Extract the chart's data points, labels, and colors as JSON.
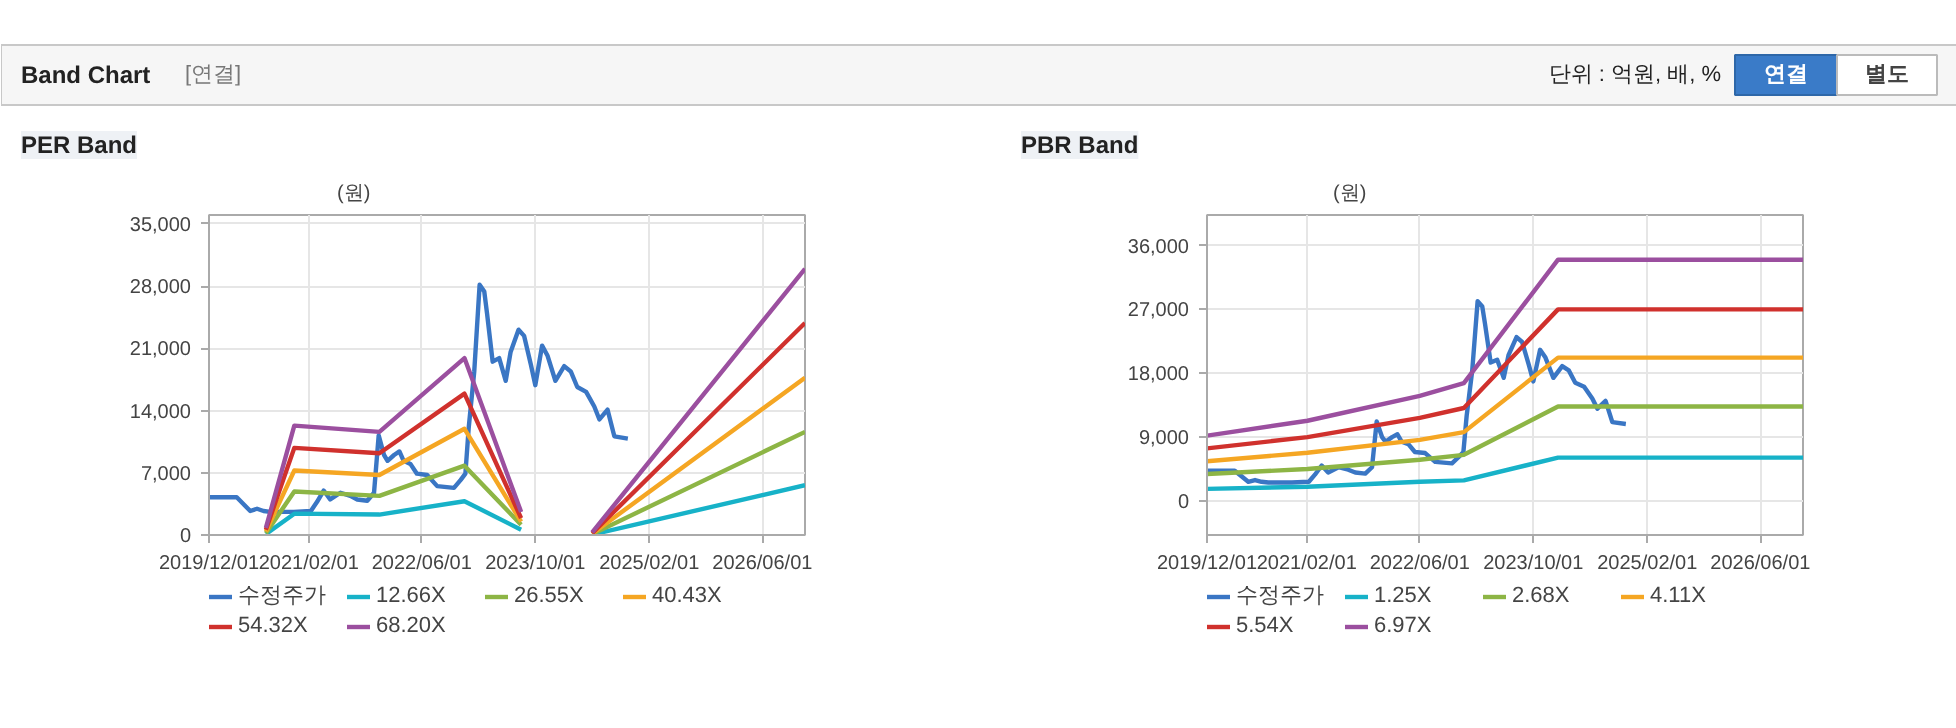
{
  "chart_data": [
    {
      "type": "other",
      "title": "Band Chart",
      "annotations": [
        "[연결]",
        "단위 : 억원, 배, %",
        "연결",
        "별도"
      ]
    },
    {
      "type": "line",
      "title": "PER Band",
      "ylabel": "(원)",
      "legend": "bottom",
      "grid": true,
      "xlim": [
        "2019-12-01",
        "2026-12-01"
      ],
      "xticks": [
        {
          "value": "2019-12-01",
          "label": "2019/12/01"
        },
        {
          "value": "2021-02-01",
          "label": "2021/02/01"
        },
        {
          "value": "2022-06-01",
          "label": "2022/06/01"
        },
        {
          "value": "2023-10-01",
          "label": "2023/10/01"
        },
        {
          "value": "2025-02-01",
          "label": "2025/02/01"
        },
        {
          "value": "2026-06-01",
          "label": "2026/06/01"
        }
      ],
      "ylim": [
        0,
        36000
      ],
      "yticks": [
        {
          "value": 0,
          "label": "0"
        },
        {
          "value": 7000,
          "label": "7,000"
        },
        {
          "value": 14000,
          "label": "14,000"
        },
        {
          "value": 21000,
          "label": "21,000"
        },
        {
          "value": 28000,
          "label": "28,000"
        },
        {
          "value": 35000,
          "label": "35,000"
        }
      ],
      "series": [
        {
          "name": "수정주가",
          "color": "#3a76c4",
          "x": [
            "2019-12-01",
            "2020-03-29",
            "2020-05-26",
            "2020-06-24",
            "2020-07-22",
            "2020-08-20",
            "2020-11-29",
            "2021-02-10",
            "2021-03-08",
            "2021-04-06",
            "2021-05-04",
            "2021-06-17",
            "2021-07-29",
            "2021-08-28",
            "2021-10-10",
            "2021-11-08",
            "2021-11-28",
            "2021-12-21",
            "2022-01-05",
            "2022-02-02",
            "2022-02-25",
            "2022-03-15",
            "2022-04-13",
            "2022-05-11",
            "2022-06-24",
            "2022-08-06",
            "2022-10-17",
            "2022-11-15",
            "2022-12-05",
            "2022-12-19",
            "2023-01-12",
            "2023-02-04",
            "2023-02-24",
            "2023-03-08",
            "2023-04-01",
            "2023-04-29",
            "2023-05-27",
            "2023-06-17",
            "2023-07-21",
            "2023-08-14",
            "2023-09-12",
            "2023-10-01",
            "2023-10-30",
            "2023-11-22",
            "2023-12-26",
            "2024-02-02",
            "2024-03-01",
            "2024-03-29",
            "2024-05-06",
            "2024-06-10",
            "2024-07-02",
            "2024-08-06",
            "2024-09-04",
            "2024-11-01"
          ],
          "values": [
            4250,
            4250,
            2700,
            2950,
            2700,
            2600,
            2600,
            2700,
            3700,
            5000,
            4000,
            4750,
            4400,
            4000,
            3850,
            4750,
            11200,
            9000,
            8350,
            9000,
            9400,
            8350,
            8000,
            6900,
            6750,
            5500,
            5300,
            6200,
            6900,
            12000,
            18400,
            28150,
            27400,
            24900,
            19500,
            19900,
            17350,
            20600,
            23100,
            22400,
            19150,
            16850,
            21300,
            20200,
            17350,
            19000,
            18400,
            16650,
            16100,
            14450,
            13000,
            14100,
            11100,
            10850
          ]
        },
        {
          "name": "12.66X",
          "color": "#17b2c8",
          "x": [
            "2020-08-01",
            "2020-12-01",
            "2021-12-01",
            "2022-12-01",
            "2023-08-01",
            "2024-01-01",
            "2024-06-01",
            "2026-12-01"
          ],
          "values": [
            100,
            2400,
            2300,
            3800,
            600,
            null,
            50,
            5600
          ]
        },
        {
          "name": "26.55X",
          "color": "#8db545",
          "x": [
            "2020-08-01",
            "2020-12-01",
            "2021-12-01",
            "2022-12-01",
            "2023-08-01",
            "2024-01-01",
            "2024-06-01",
            "2026-12-01"
          ],
          "values": [
            200,
            4900,
            4400,
            7800,
            1150,
            null,
            100,
            11600
          ]
        },
        {
          "name": "40.43X",
          "color": "#f5a623",
          "x": [
            "2020-08-01",
            "2020-12-01",
            "2021-12-01",
            "2022-12-01",
            "2023-08-01",
            "2024-01-01",
            "2024-06-01",
            "2026-12-01"
          ],
          "values": [
            400,
            7250,
            6750,
            11950,
            1500,
            null,
            150,
            17700
          ]
        },
        {
          "name": "54.32X",
          "color": "#d0312d",
          "x": [
            "2020-08-01",
            "2020-12-01",
            "2021-12-01",
            "2022-12-01",
            "2023-08-01",
            "2024-01-01",
            "2024-06-01",
            "2026-12-01"
          ],
          "values": [
            600,
            9800,
            9200,
            15900,
            1900,
            null,
            200,
            23850
          ]
        },
        {
          "name": "68.20X",
          "color": "#9b4f9f",
          "x": [
            "2020-08-01",
            "2020-12-01",
            "2021-12-01",
            "2022-12-01",
            "2023-08-01",
            "2024-01-01",
            "2024-06-01",
            "2026-12-01"
          ],
          "values": [
            800,
            12300,
            11600,
            19900,
            2600,
            null,
            300,
            29950
          ]
        }
      ]
    },
    {
      "type": "line",
      "title": "PBR Band",
      "ylabel": "(원)",
      "legend": "bottom",
      "grid": true,
      "xlim": [
        "2019-12-01",
        "2026-12-01"
      ],
      "xticks": [
        {
          "value": "2019-12-01",
          "label": "2019/12/01"
        },
        {
          "value": "2021-02-01",
          "label": "2021/02/01"
        },
        {
          "value": "2022-06-01",
          "label": "2022/06/01"
        },
        {
          "value": "2023-10-01",
          "label": "2023/10/01"
        },
        {
          "value": "2025-02-01",
          "label": "2025/02/01"
        },
        {
          "value": "2026-06-01",
          "label": "2026/06/01"
        }
      ],
      "ylim": [
        -4800,
        40300
      ],
      "yticks": [
        {
          "value": 0,
          "label": "0"
        },
        {
          "value": 9000,
          "label": "9,000"
        },
        {
          "value": 18000,
          "label": "18,000"
        },
        {
          "value": 27000,
          "label": "27,000"
        },
        {
          "value": 36000,
          "label": "36,000"
        }
      ],
      "series": [
        {
          "name": "수정주가",
          "color": "#3a76c4",
          "x": [
            "2019-12-01",
            "2020-03-29",
            "2020-05-26",
            "2020-06-24",
            "2020-07-22",
            "2020-08-20",
            "2020-11-29",
            "2021-02-10",
            "2021-03-08",
            "2021-04-06",
            "2021-05-04",
            "2021-06-17",
            "2021-07-29",
            "2021-08-28",
            "2021-10-10",
            "2021-11-08",
            "2021-11-28",
            "2021-12-21",
            "2022-01-05",
            "2022-02-02",
            "2022-02-25",
            "2022-03-15",
            "2022-04-13",
            "2022-05-11",
            "2022-06-24",
            "2022-08-06",
            "2022-10-17",
            "2022-11-15",
            "2022-12-05",
            "2022-12-19",
            "2023-01-12",
            "2023-02-04",
            "2023-02-24",
            "2023-03-08",
            "2023-04-01",
            "2023-04-29",
            "2023-05-27",
            "2023-06-17",
            "2023-07-21",
            "2023-08-14",
            "2023-09-12",
            "2023-10-01",
            "2023-10-30",
            "2023-11-22",
            "2023-12-26",
            "2024-02-02",
            "2024-03-01",
            "2024-03-29",
            "2024-05-06",
            "2024-06-10",
            "2024-07-02",
            "2024-08-06",
            "2024-09-04",
            "2024-11-01"
          ],
          "values": [
            4250,
            4250,
            2700,
            2950,
            2700,
            2600,
            2600,
            2700,
            3700,
            5000,
            4000,
            4750,
            4400,
            4000,
            3850,
            4750,
            11200,
            9000,
            8350,
            9000,
            9400,
            8350,
            8000,
            6900,
            6750,
            5500,
            5300,
            6200,
            6900,
            12000,
            18400,
            28150,
            27400,
            24900,
            19500,
            19900,
            17350,
            20600,
            23100,
            22400,
            19150,
            16850,
            21300,
            20200,
            17350,
            19000,
            18400,
            16650,
            16100,
            14450,
            13000,
            14100,
            11100,
            10850
          ]
        },
        {
          "name": "1.25X",
          "color": "#17b2c8",
          "x": [
            "2019-12-01",
            "2021-02-04",
            "2022-06-01",
            "2022-12-07",
            "2024-01-15",
            "2026-12-01"
          ],
          "values": [
            1700,
            2000,
            2700,
            2900,
            6100,
            6100
          ]
        },
        {
          "name": "2.68X",
          "color": "#8db545",
          "x": [
            "2019-12-01",
            "2021-02-04",
            "2022-06-01",
            "2022-12-07",
            "2024-01-15",
            "2026-12-01"
          ],
          "values": [
            3800,
            4500,
            5800,
            6500,
            13300,
            13300
          ]
        },
        {
          "name": "4.11X",
          "color": "#f5a623",
          "x": [
            "2019-12-01",
            "2021-02-04",
            "2022-06-01",
            "2022-12-07",
            "2024-01-15",
            "2026-12-01"
          ],
          "values": [
            5600,
            6800,
            8600,
            9700,
            20200,
            20200
          ]
        },
        {
          "name": "5.54X",
          "color": "#d0312d",
          "x": [
            "2019-12-01",
            "2021-02-04",
            "2022-06-01",
            "2022-12-07",
            "2024-01-15",
            "2026-12-01"
          ],
          "values": [
            7400,
            9000,
            11700,
            13100,
            27000,
            27000
          ]
        },
        {
          "name": "6.97X",
          "color": "#9b4f9f",
          "x": [
            "2019-12-01",
            "2021-02-04",
            "2022-06-01",
            "2022-12-07",
            "2024-01-15",
            "2026-12-01"
          ],
          "values": [
            9200,
            11300,
            14800,
            16600,
            34000,
            34000
          ]
        }
      ]
    }
  ]
}
